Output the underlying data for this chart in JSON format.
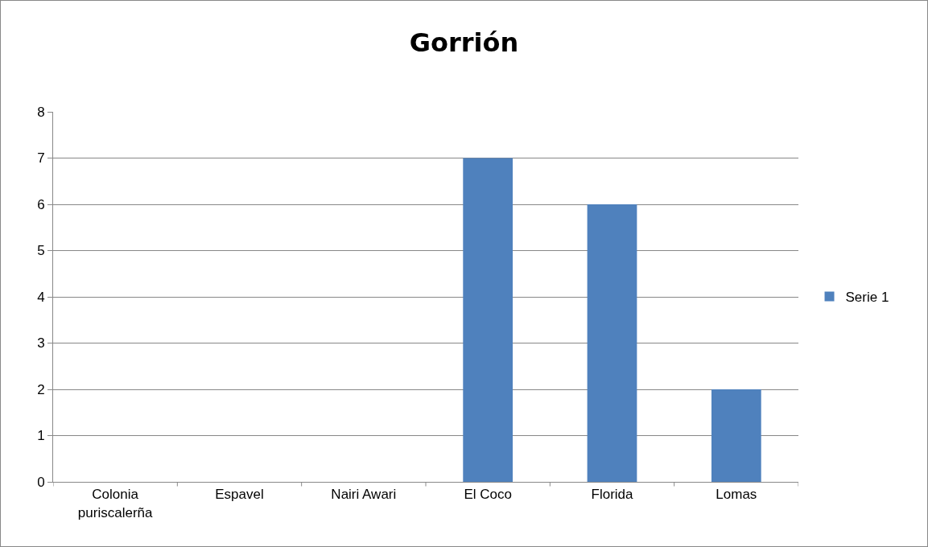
{
  "chart_data": {
    "type": "bar",
    "title": "Gorrión",
    "categories": [
      "Colonia puriscalerña",
      "Espavel",
      "Nairi Awari",
      "El Coco",
      "Florida",
      "Lomas"
    ],
    "series": [
      {
        "name": "Serie 1",
        "color": "#4f81bd",
        "values": [
          0,
          0,
          0,
          7,
          6,
          2
        ]
      }
    ],
    "ylim": [
      0,
      8
    ],
    "yticks": [
      0,
      1,
      2,
      3,
      4,
      5,
      6,
      7,
      8
    ],
    "grid": "y",
    "legend": "right"
  }
}
